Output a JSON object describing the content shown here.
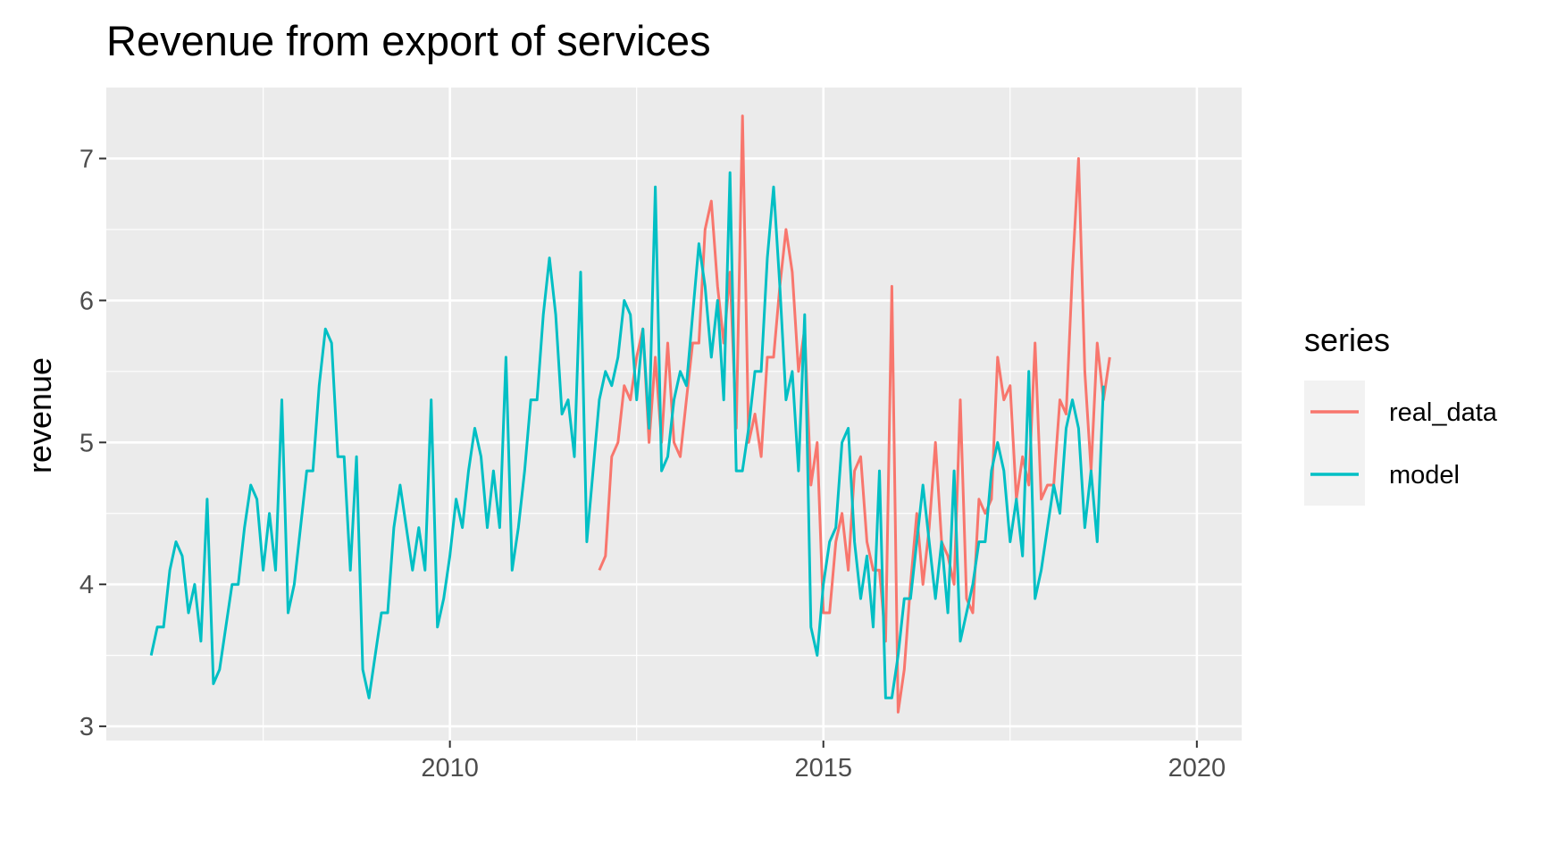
{
  "chart_data": {
    "type": "line",
    "title": "Revenue from export of services",
    "xlabel": "",
    "ylabel": "revenue",
    "xlim": [
      2005.4,
      2020.6
    ],
    "ylim": [
      2.9,
      7.5
    ],
    "x_major_ticks": [
      2010,
      2015,
      2020
    ],
    "x_minor_ticks": [
      2007.5,
      2012.5,
      2017.5
    ],
    "y_major_ticks": [
      3,
      4,
      5,
      6,
      7
    ],
    "y_minor_ticks": [
      3.5,
      4.5,
      5.5,
      6.5
    ],
    "x_tick_labels": [
      "2010",
      "2015",
      "2020"
    ],
    "y_tick_labels": [
      "3",
      "4",
      "5",
      "6",
      "7"
    ],
    "grid": true,
    "legend": {
      "title": "series",
      "position": "right",
      "entries": [
        "real_data",
        "model"
      ]
    },
    "series": [
      {
        "name": "real_data",
        "color": "#F8766D",
        "start": 2012.0,
        "step": 0.0833333,
        "values": [
          4.1,
          4.2,
          4.9,
          5.0,
          5.4,
          5.3,
          5.6,
          5.8,
          5.0,
          5.6,
          5.0,
          5.7,
          5.0,
          4.9,
          5.3,
          5.7,
          5.7,
          6.5,
          6.7,
          6.1,
          5.7,
          6.2,
          5.1,
          7.3,
          5.0,
          5.2,
          4.9,
          5.6,
          5.6,
          6.1,
          6.5,
          6.2,
          5.5,
          5.8,
          4.7,
          5.0,
          3.8,
          3.8,
          4.3,
          4.5,
          4.1,
          4.8,
          4.9,
          4.3,
          4.1,
          4.1,
          3.6,
          6.1,
          3.1,
          3.4,
          4.0,
          4.5,
          4.0,
          4.4,
          5.0,
          4.3,
          4.2,
          4.0,
          5.3,
          3.9,
          3.8,
          4.6,
          4.5,
          4.6,
          5.6,
          5.3,
          5.4,
          4.6,
          4.9,
          4.7,
          5.7,
          4.6,
          4.7,
          4.7,
          5.3,
          5.2,
          6.2,
          7.0,
          5.5,
          4.8,
          5.7,
          5.3,
          5.6
        ]
      },
      {
        "name": "model",
        "color": "#00BFC4",
        "start": 2006.0,
        "step": 0.0833333,
        "values": [
          3.5,
          3.7,
          3.7,
          4.1,
          4.3,
          4.2,
          3.8,
          4.0,
          3.6,
          4.6,
          3.3,
          3.4,
          3.7,
          4.0,
          4.0,
          4.4,
          4.7,
          4.6,
          4.1,
          4.5,
          4.1,
          5.3,
          3.8,
          4.0,
          4.4,
          4.8,
          4.8,
          5.4,
          5.8,
          5.7,
          4.9,
          4.9,
          4.1,
          4.9,
          3.4,
          3.2,
          3.5,
          3.8,
          3.8,
          4.4,
          4.7,
          4.4,
          4.1,
          4.4,
          4.1,
          5.3,
          3.7,
          3.9,
          4.2,
          4.6,
          4.4,
          4.8,
          5.1,
          4.9,
          4.4,
          4.8,
          4.4,
          5.6,
          4.1,
          4.4,
          4.8,
          5.3,
          5.3,
          5.9,
          6.3,
          5.9,
          5.2,
          5.3,
          4.9,
          6.2,
          4.3,
          4.8,
          5.3,
          5.5,
          5.4,
          5.6,
          6.0,
          5.9,
          5.3,
          5.8,
          5.1,
          6.8,
          4.8,
          4.9,
          5.3,
          5.5,
          5.4,
          5.9,
          6.4,
          6.1,
          5.6,
          6.0,
          5.3,
          6.9,
          4.8,
          4.8,
          5.1,
          5.5,
          5.5,
          6.3,
          6.8,
          6.1,
          5.3,
          5.5,
          4.8,
          5.9,
          3.7,
          3.5,
          4.0,
          4.3,
          4.4,
          5.0,
          5.1,
          4.3,
          3.9,
          4.2,
          3.7,
          4.8,
          3.2,
          3.2,
          3.5,
          3.9,
          3.9,
          4.3,
          4.7,
          4.3,
          3.9,
          4.3,
          3.8,
          4.8,
          3.6,
          3.8,
          4.0,
          4.3,
          4.3,
          4.8,
          5.0,
          4.8,
          4.3,
          4.6,
          4.2,
          5.5,
          3.9,
          4.1,
          4.4,
          4.7,
          4.5,
          5.1,
          5.3,
          5.1,
          4.4,
          4.8,
          4.3,
          5.4
        ]
      }
    ]
  }
}
